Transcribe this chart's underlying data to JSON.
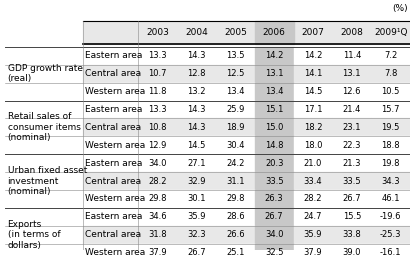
{
  "title_note": "(%)",
  "col_headers": [
    "2003",
    "2004",
    "2005",
    "2006",
    "2007",
    "2008",
    "2009¹Q"
  ],
  "row_groups": [
    {
      "label": "GDP growth rate\n(real)",
      "rows": [
        {
          "area": "Eastern area",
          "values": [
            "13.3",
            "14.3",
            "13.5",
            "14.2",
            "14.2",
            "11.4",
            "7.2"
          ]
        },
        {
          "area": "Central area",
          "values": [
            "10.7",
            "12.8",
            "12.5",
            "13.1",
            "14.1",
            "13.1",
            "7.8"
          ]
        },
        {
          "area": "Western area",
          "values": [
            "11.8",
            "13.2",
            "13.4",
            "13.4",
            "14.5",
            "12.6",
            "10.5"
          ]
        }
      ]
    },
    {
      "label": "Retail sales of\nconsumer items\n(nominal)",
      "rows": [
        {
          "area": "Eastern area",
          "values": [
            "13.3",
            "14.3",
            "25.9",
            "15.1",
            "17.1",
            "21.4",
            "15.7"
          ]
        },
        {
          "area": "Central area",
          "values": [
            "10.8",
            "14.3",
            "18.9",
            "15.0",
            "18.2",
            "23.1",
            "19.5"
          ]
        },
        {
          "area": "Western area",
          "values": [
            "12.9",
            "14.5",
            "30.4",
            "14.8",
            "18.0",
            "22.3",
            "18.8"
          ]
        }
      ]
    },
    {
      "label": "Urban fixed asset\ninvestment\n(nominal)",
      "rows": [
        {
          "area": "Eastern area",
          "values": [
            "34.0",
            "27.1",
            "24.2",
            "20.3",
            "21.0",
            "21.3",
            "19.8"
          ]
        },
        {
          "area": "Central area",
          "values": [
            "28.2",
            "32.9",
            "31.1",
            "33.5",
            "33.4",
            "33.5",
            "34.3"
          ]
        },
        {
          "area": "Western area",
          "values": [
            "29.8",
            "30.1",
            "29.8",
            "26.3",
            "28.2",
            "26.7",
            "46.1"
          ]
        }
      ]
    },
    {
      "label": "Exports\n(in terms of\ndollars)",
      "rows": [
        {
          "area": "Eastern area",
          "values": [
            "34.6",
            "35.9",
            "28.6",
            "26.7",
            "24.7",
            "15.5",
            "-19.6"
          ]
        },
        {
          "area": "Central area",
          "values": [
            "31.8",
            "32.3",
            "26.6",
            "34.0",
            "35.9",
            "33.8",
            "-25.3"
          ]
        },
        {
          "area": "Western area",
          "values": [
            "37.9",
            "26.7",
            "25.1",
            "32.5",
            "37.9",
            "39.0",
            "-16.1"
          ]
        }
      ]
    }
  ],
  "color_white": "#ffffff",
  "color_light_gray": "#e8e8e8",
  "color_medium_gray": "#c8c8c8",
  "font_size_data": 6.0,
  "font_size_header": 6.5,
  "font_size_label": 6.5,
  "font_size_area": 6.5
}
